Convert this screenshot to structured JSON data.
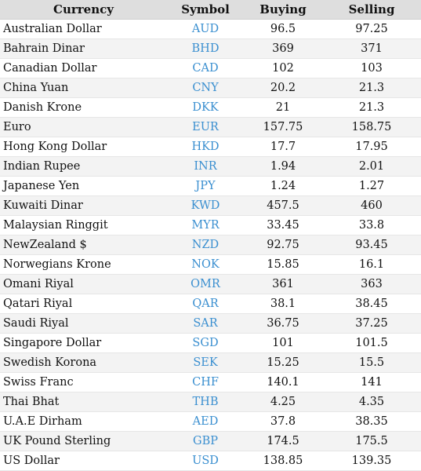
{
  "table": {
    "headers": {
      "currency": "Currency",
      "symbol": "Symbol",
      "buying": "Buying",
      "selling": "Selling"
    },
    "rows": [
      {
        "currency": "Australian Dollar",
        "symbol": "AUD",
        "buying": "96.5",
        "selling": "97.25"
      },
      {
        "currency": "Bahrain Dinar",
        "symbol": "BHD",
        "buying": "369",
        "selling": "371"
      },
      {
        "currency": "Canadian Dollar",
        "symbol": "CAD",
        "buying": "102",
        "selling": "103"
      },
      {
        "currency": "China Yuan",
        "symbol": "CNY",
        "buying": "20.2",
        "selling": "21.3"
      },
      {
        "currency": "Danish Krone",
        "symbol": "DKK",
        "buying": "21",
        "selling": "21.3"
      },
      {
        "currency": "Euro",
        "symbol": "EUR",
        "buying": "157.75",
        "selling": "158.75"
      },
      {
        "currency": "Hong Kong Dollar",
        "symbol": "HKD",
        "buying": "17.7",
        "selling": "17.95"
      },
      {
        "currency": "Indian Rupee",
        "symbol": "INR",
        "buying": "1.94",
        "selling": "2.01"
      },
      {
        "currency": "Japanese Yen",
        "symbol": "JPY",
        "buying": "1.24",
        "selling": "1.27"
      },
      {
        "currency": "Kuwaiti Dinar",
        "symbol": "KWD",
        "buying": "457.5",
        "selling": "460"
      },
      {
        "currency": "Malaysian Ringgit",
        "symbol": "MYR",
        "buying": "33.45",
        "selling": "33.8"
      },
      {
        "currency": "NewZealand $",
        "symbol": "NZD",
        "buying": "92.75",
        "selling": "93.45"
      },
      {
        "currency": "Norwegians Krone",
        "symbol": "NOK",
        "buying": "15.85",
        "selling": "16.1"
      },
      {
        "currency": "Omani Riyal",
        "symbol": "OMR",
        "buying": "361",
        "selling": "363"
      },
      {
        "currency": "Qatari Riyal",
        "symbol": "QAR",
        "buying": "38.1",
        "selling": "38.45"
      },
      {
        "currency": "Saudi Riyal",
        "symbol": "SAR",
        "buying": "36.75",
        "selling": "37.25"
      },
      {
        "currency": "Singapore Dollar",
        "symbol": "SGD",
        "buying": "101",
        "selling": "101.5"
      },
      {
        "currency": "Swedish Korona",
        "symbol": "SEK",
        "buying": "15.25",
        "selling": "15.5"
      },
      {
        "currency": "Swiss Franc",
        "symbol": "CHF",
        "buying": "140.1",
        "selling": "141"
      },
      {
        "currency": "Thai Bhat",
        "symbol": "THB",
        "buying": "4.25",
        "selling": "4.35"
      },
      {
        "currency": "U.A.E Dirham",
        "symbol": "AED",
        "buying": "37.8",
        "selling": "38.35"
      },
      {
        "currency": "UK Pound Sterling",
        "symbol": "GBP",
        "buying": "174.5",
        "selling": "175.5"
      },
      {
        "currency": "US Dollar",
        "symbol": "USD",
        "buying": "138.85",
        "selling": "139.35"
      }
    ]
  },
  "colors": {
    "header_background": "#dedede",
    "row_alt_background": "#f3f3f3",
    "symbol_text": "#3a8fd0",
    "body_text": "#111111"
  }
}
